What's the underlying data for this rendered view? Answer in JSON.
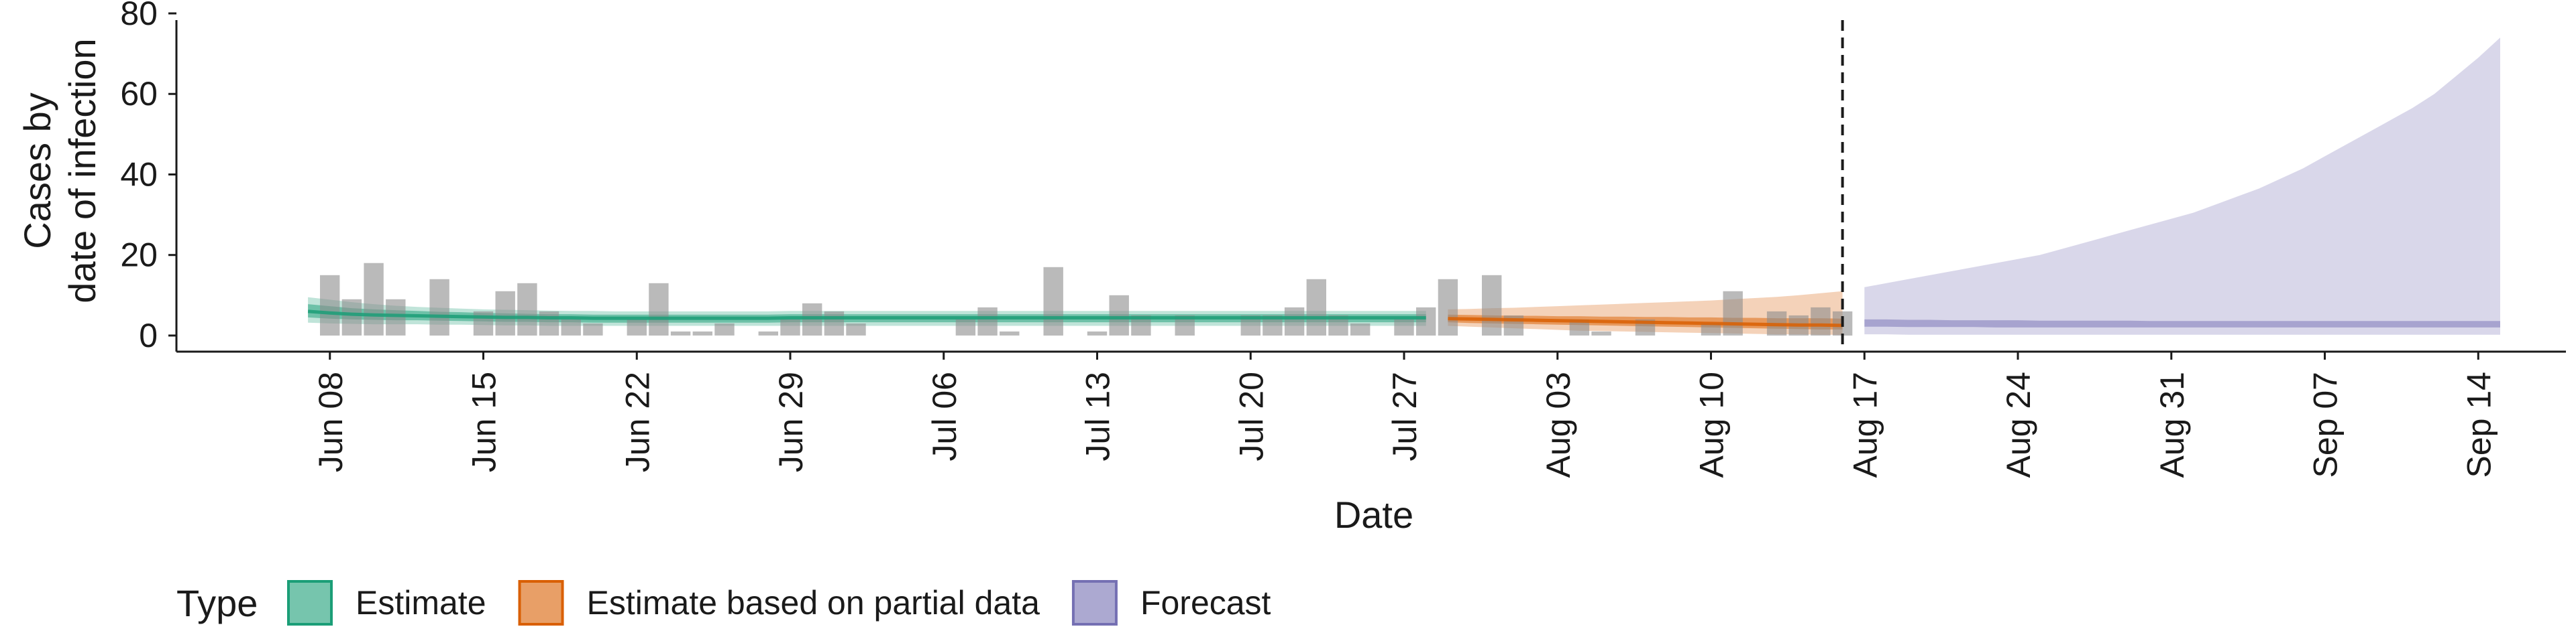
{
  "chart_data": {
    "type": "bar+area",
    "xlabel": "Date",
    "ylabel_lines": [
      "Cases by",
      "date of infection"
    ],
    "ylim": [
      -4,
      80
    ],
    "y_ticks": [
      0,
      20,
      40,
      60,
      80
    ],
    "x_range_days": [
      -7,
      102
    ],
    "x_ticks": [
      {
        "day": 0,
        "label": "Jun 08"
      },
      {
        "day": 7,
        "label": "Jun 15"
      },
      {
        "day": 14,
        "label": "Jun 22"
      },
      {
        "day": 21,
        "label": "Jun 29"
      },
      {
        "day": 28,
        "label": "Jul 06"
      },
      {
        "day": 35,
        "label": "Jul 13"
      },
      {
        "day": 42,
        "label": "Jul 20"
      },
      {
        "day": 49,
        "label": "Jul 27"
      },
      {
        "day": 56,
        "label": "Aug 03"
      },
      {
        "day": 63,
        "label": "Aug 10"
      },
      {
        "day": 70,
        "label": "Aug 17"
      },
      {
        "day": 77,
        "label": "Aug 24"
      },
      {
        "day": 84,
        "label": "Aug 31"
      },
      {
        "day": 91,
        "label": "Sep 07"
      },
      {
        "day": 98,
        "label": "Sep 14"
      }
    ],
    "forecast_start_day": 69,
    "observed_cases": {
      "start_day": 0,
      "values": [
        15,
        9,
        18,
        9,
        0,
        14,
        0,
        6,
        11,
        13,
        6,
        4,
        3,
        0,
        4,
        13,
        1,
        1,
        3,
        0,
        1,
        4,
        8,
        6,
        3,
        0,
        0,
        0,
        0,
        4,
        7,
        1,
        0,
        17,
        0,
        1,
        10,
        5,
        0,
        5,
        0,
        0,
        5,
        5,
        7,
        14,
        5,
        3,
        0,
        4,
        7,
        14,
        0,
        15,
        5,
        0,
        0,
        4,
        1,
        0,
        4,
        0,
        0,
        3,
        11,
        0,
        6,
        5,
        7,
        6
      ]
    },
    "series": [
      {
        "name": "Estimate",
        "color": "#1b9e77",
        "start_day": -1,
        "median": [
          6,
          5.6,
          5.3,
          5.1,
          5,
          4.9,
          4.8,
          4.7,
          4.6,
          4.5,
          4.5,
          4.4,
          4.4,
          4.3,
          4.3,
          4.3,
          4.3,
          4.3,
          4.3,
          4.3,
          4.3,
          4.3,
          4.4,
          4.4,
          4.4,
          4.4,
          4.4,
          4.4,
          4.4,
          4.4,
          4.4,
          4.4,
          4.4,
          4.4,
          4.4,
          4.4,
          4.4,
          4.4,
          4.4,
          4.4,
          4.4,
          4.4,
          4.4,
          4.4,
          4.4,
          4.4,
          4.4,
          4.4,
          4.4,
          4.4,
          4.4,
          4.4
        ],
        "inner_low": [
          4.5,
          4.2,
          4,
          3.9,
          3.8,
          3.8,
          3.7,
          3.6,
          3.5,
          3.4,
          3.4,
          3.3,
          3.3,
          3.2,
          3.2,
          3.2,
          3.2,
          3.2,
          3.2,
          3.2,
          3.2,
          3.2,
          3.3,
          3.3,
          3.3,
          3.3,
          3.3,
          3.3,
          3.3,
          3.3,
          3.3,
          3.3,
          3.3,
          3.3,
          3.3,
          3.3,
          3.3,
          3.3,
          3.3,
          3.3,
          3.3,
          3.3,
          3.3,
          3.3,
          3.3,
          3.3,
          3.3,
          3.3,
          3.3,
          3.3,
          3.3,
          3.3
        ],
        "inner_high": [
          7.8,
          7.3,
          6.8,
          6.5,
          6.3,
          6.1,
          5.9,
          5.8,
          5.6,
          5.5,
          5.4,
          5.3,
          5.3,
          5.2,
          5.2,
          5.2,
          5.2,
          5.2,
          5.2,
          5.2,
          5.2,
          5.2,
          5.3,
          5.3,
          5.3,
          5.3,
          5.3,
          5.3,
          5.3,
          5.3,
          5.3,
          5.3,
          5.3,
          5.3,
          5.3,
          5.3,
          5.3,
          5.3,
          5.3,
          5.3,
          5.3,
          5.3,
          5.3,
          5.3,
          5.3,
          5.3,
          5.3,
          5.3,
          5.3,
          5.3,
          5.3,
          5.3
        ],
        "outer_low": [
          3.2,
          3,
          2.9,
          2.8,
          2.8,
          2.8,
          2.7,
          2.7,
          2.6,
          2.5,
          2.5,
          2.4,
          2.4,
          2.4,
          2.4,
          2.4,
          2.4,
          2.4,
          2.4,
          2.4,
          2.4,
          2.4,
          2.4,
          2.4,
          2.4,
          2.4,
          2.4,
          2.4,
          2.4,
          2.4,
          2.4,
          2.4,
          2.4,
          2.4,
          2.4,
          2.4,
          2.4,
          2.4,
          2.4,
          2.4,
          2.4,
          2.4,
          2.4,
          2.4,
          2.4,
          2.4,
          2.4,
          2.4,
          2.4,
          2.4,
          2.4,
          2.4
        ],
        "outer_high": [
          9.5,
          8.9,
          8.3,
          7.8,
          7.4,
          7.1,
          6.9,
          6.7,
          6.5,
          6.4,
          6.3,
          6.2,
          6.1,
          6.1,
          6,
          6,
          6,
          6,
          6,
          6,
          6,
          6,
          6.1,
          6.1,
          6.1,
          6.1,
          6.1,
          6.1,
          6.1,
          6.1,
          6.1,
          6.1,
          6.1,
          6.1,
          6.1,
          6.1,
          6.1,
          6.1,
          6.1,
          6.1,
          6.1,
          6.1,
          6.1,
          6.1,
          6.1,
          6.1,
          6.1,
          6.1,
          6.1,
          6.1,
          6.1,
          6.1
        ]
      },
      {
        "name": "Estimate based on partial data",
        "color": "#d95f02",
        "start_day": 51,
        "median": [
          4.2,
          4.1,
          4,
          3.9,
          3.8,
          3.7,
          3.6,
          3.5,
          3.4,
          3.3,
          3.2,
          3.1,
          3,
          2.9,
          2.8,
          2.7,
          2.6,
          2.6,
          2.5
        ],
        "inner_low": [
          3.3,
          3.1,
          3,
          2.9,
          2.8,
          2.7,
          2.6,
          2.5,
          2.4,
          2.3,
          2.2,
          2.1,
          2,
          1.9,
          1.8,
          1.7,
          1.6,
          1.5,
          1.5
        ],
        "inner_high": [
          5.2,
          5.1,
          5,
          4.9,
          4.9,
          4.8,
          4.8,
          4.7,
          4.7,
          4.6,
          4.6,
          4.5,
          4.5,
          4.4,
          4.4,
          4.3,
          4.3,
          4.3,
          4.2
        ],
        "outer_low": [
          2.4,
          2.2,
          2,
          1.8,
          1.6,
          1.4,
          1.2,
          1.1,
          1,
          0.9,
          0.8,
          0.7,
          0.6,
          0.5,
          0.4,
          0.3,
          0.3,
          0.2,
          0.2
        ],
        "outer_high": [
          6.5,
          6.6,
          6.8,
          6.9,
          7.1,
          7.3,
          7.5,
          7.7,
          7.9,
          8.1,
          8.3,
          8.5,
          8.7,
          9,
          9.3,
          9.6,
          10,
          10.5,
          11
        ]
      },
      {
        "name": "Forecast",
        "color": "#7570b3",
        "start_day": 70,
        "inner_low": [
          2.2,
          2.2,
          2.1,
          2.1,
          2.1,
          2.1,
          2,
          2,
          2,
          2,
          2,
          2,
          2,
          2,
          2,
          2,
          2,
          2,
          2,
          2,
          2,
          2,
          2,
          2,
          2,
          2,
          2,
          2,
          2,
          2
        ],
        "inner_high": [
          4,
          4,
          3.9,
          3.9,
          3.8,
          3.8,
          3.8,
          3.8,
          3.7,
          3.7,
          3.7,
          3.7,
          3.7,
          3.6,
          3.6,
          3.6,
          3.6,
          3.6,
          3.6,
          3.6,
          3.6,
          3.6,
          3.6,
          3.6,
          3.6,
          3.6,
          3.6,
          3.6,
          3.6,
          3.6
        ],
        "outer_low": [
          0.3,
          0.3,
          0.2,
          0.2,
          0.2,
          0.2,
          0.2,
          0.2,
          0.2,
          0.2,
          0.2,
          0.2,
          0.2,
          0.2,
          0.2,
          0.2,
          0.2,
          0.2,
          0.2,
          0.2,
          0.2,
          0.2,
          0.2,
          0.2,
          0.2,
          0.2,
          0.2,
          0.2,
          0.2,
          0.2
        ],
        "outer_high": [
          12,
          13,
          14,
          15,
          16,
          17,
          18,
          19,
          20,
          21.5,
          23,
          24.5,
          26,
          27.5,
          29,
          30.5,
          32.5,
          34.5,
          36.5,
          39,
          41.5,
          44.5,
          47.5,
          50.5,
          53.5,
          56.5,
          60,
          64.5,
          69,
          74
        ]
      }
    ],
    "legend": {
      "title": "Type",
      "position": "bottom-left",
      "items": [
        {
          "label": "Estimate",
          "color": "#1b9e77"
        },
        {
          "label": "Estimate based on partial data",
          "color": "#d95f02"
        },
        {
          "label": "Forecast",
          "color": "#7570b3"
        }
      ]
    }
  }
}
